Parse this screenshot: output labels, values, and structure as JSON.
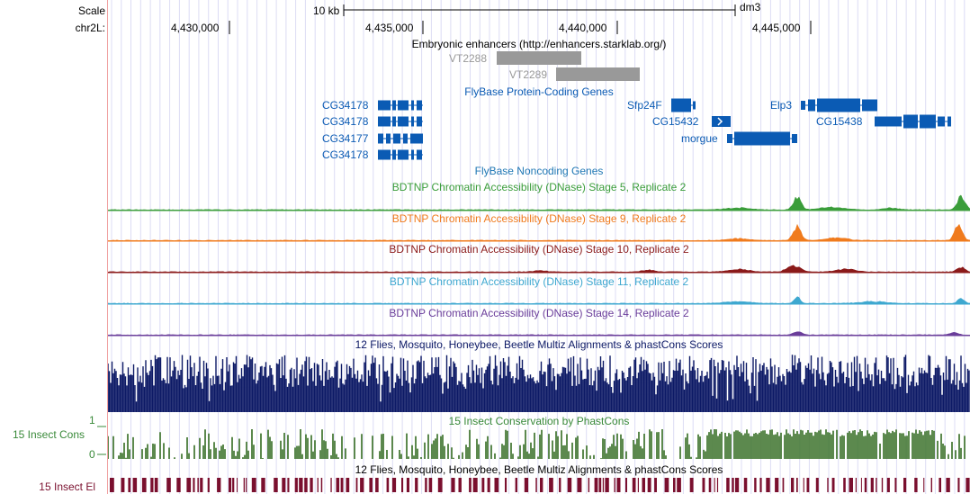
{
  "ruler": {
    "scale_label": "Scale",
    "chrom_label": "chr2L:",
    "scale_bar_text": "10 kb",
    "assembly": "dm3",
    "positions": [
      "4,430,000",
      "4,435,000",
      "4,440,000",
      "4,445,000"
    ]
  },
  "tracks": {
    "enhancers": {
      "title": "Embryonic enhancers (http://enhancers.starklab.org/)",
      "items": [
        "VT2288",
        "VT2289"
      ],
      "color": "#999999"
    },
    "protein_genes": {
      "title": "FlyBase Protein-Coding Genes",
      "color": "#0b5bb4",
      "items": [
        "CG34178",
        "CG34178",
        "CG34177",
        "CG34178",
        "Sfp24F",
        "CG15432",
        "morgue",
        "Elp3",
        "CG15438"
      ]
    },
    "noncoding_genes": {
      "title": "FlyBase Noncoding Genes",
      "color": "#1f77b4"
    },
    "dnase": [
      {
        "title": "BDTNP Chromatin Accessibility (DNase) Stage 5, Replicate 2",
        "color": "#3a9d3a"
      },
      {
        "title": "BDTNP Chromatin Accessibility (DNase) Stage 9, Replicate 2",
        "color": "#f07b1d"
      },
      {
        "title": "BDTNP Chromatin Accessibility (DNase) Stage 10, Replicate 2",
        "color": "#8b1a1a"
      },
      {
        "title": "BDTNP Chromatin Accessibility (DNase) Stage 11, Replicate 2",
        "color": "#3ea8d0"
      },
      {
        "title": "BDTNP Chromatin Accessibility (DNase) Stage 14, Replicate 2",
        "color": "#6a3d9a"
      }
    ],
    "multiz": {
      "title": "12 Flies, Mosquito, Honeybee, Beetle Multiz Alignments & phastCons Scores",
      "color": "#0d1a66"
    },
    "insect_cons": {
      "left_label": "15 Insect Cons",
      "title": "15 Insect Conservation by PhastCons",
      "axis_max": "1",
      "axis_min": "0",
      "color": "#4a7c3a",
      "title_color": "#3a8a3a"
    },
    "insect_el": {
      "left_label": "15 Insect El",
      "title": "12 Flies, Mosquito, Honeybee, Beetle Multiz Alignments & phastCons Scores",
      "color": "#7a0f2e"
    }
  }
}
